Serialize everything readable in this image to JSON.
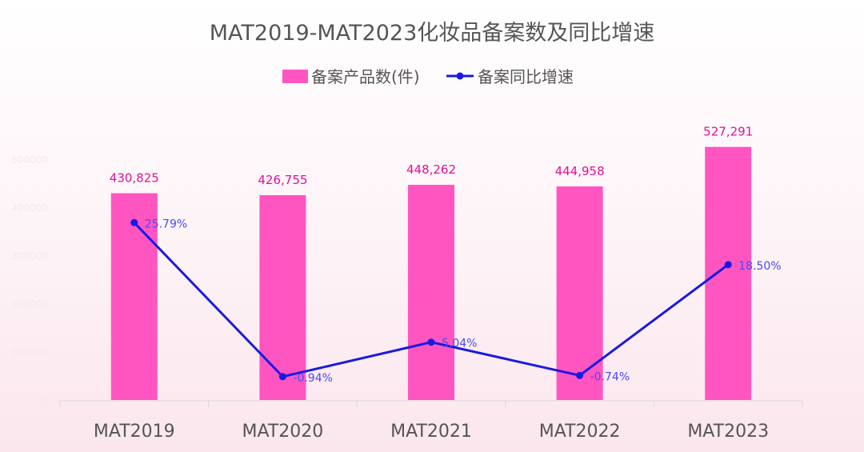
{
  "colors": {
    "bar": "#ff55c1",
    "line": "#1a1adf",
    "bar_label": "#e0119a",
    "line_label": "#4a4af5",
    "title": "#555555",
    "axis_text": "#555555",
    "ghost_tick": "#f6e8ee"
  },
  "chart_data": {
    "type": "bar",
    "title": "MAT2019-MAT2023化妆品备案数及同比增速",
    "categories": [
      "MAT2019",
      "MAT2020",
      "MAT2021",
      "MAT2022",
      "MAT2023"
    ],
    "series": [
      {
        "name": "备案产品数(件)",
        "type": "bar",
        "values": [
          430825,
          426755,
          448262,
          444958,
          527291
        ],
        "labels": [
          "430,825",
          "426,755",
          "448,262",
          "444,958",
          "527,291"
        ]
      },
      {
        "name": "备案同比增速",
        "type": "line",
        "values": [
          25.79,
          -0.94,
          5.04,
          -0.74,
          18.5
        ],
        "labels": [
          "25.79%",
          "-0.94%",
          "5.04%",
          "-0.74%",
          "18.50%"
        ]
      }
    ],
    "y_ticks": [
      "0",
      "100000",
      "200000",
      "300000",
      "400000",
      "500000"
    ],
    "ylim": [
      0,
      600000
    ],
    "y2lim": [
      -5,
      45
    ],
    "legend_position": "top-center",
    "grid": false
  }
}
